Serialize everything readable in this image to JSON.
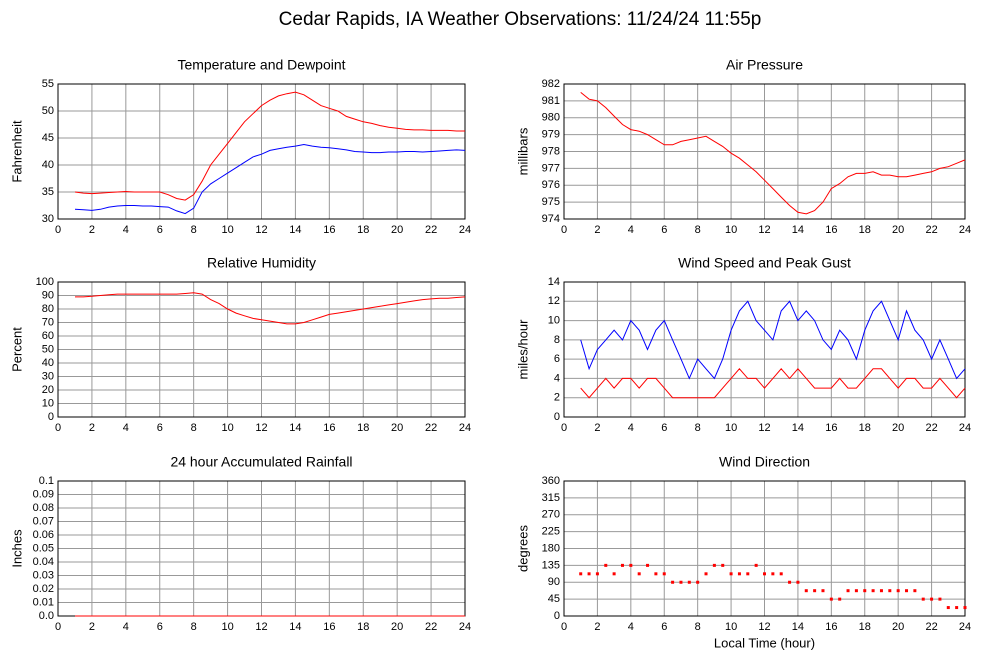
{
  "title": "Cedar Rapids, IA Weather Observations: 11/24/24 11:55p",
  "chart_data": [
    {
      "type": "line",
      "title": "Temperature and Dewpoint",
      "ylabel": "Fahrenheit",
      "x": [
        1,
        1.5,
        2,
        2.5,
        3,
        3.5,
        4,
        4.5,
        5,
        5.5,
        6,
        6.5,
        7,
        7.5,
        8,
        8.5,
        9,
        9.5,
        10,
        10.5,
        11,
        11.5,
        12,
        12.5,
        13,
        13.5,
        14,
        14.5,
        15,
        15.5,
        16,
        16.5,
        17,
        17.5,
        18,
        18.5,
        19,
        19.5,
        20,
        20.5,
        21,
        21.5,
        22,
        22.5,
        23,
        23.5,
        24
      ],
      "series": [
        {
          "color": "#ff0000",
          "values": [
            35,
            34.8,
            34.7,
            34.8,
            34.9,
            35,
            35.1,
            35,
            35,
            35,
            35,
            34.5,
            33.8,
            33.5,
            34.5,
            37,
            40,
            42,
            44,
            46,
            48,
            49.5,
            51,
            52,
            52.8,
            53.2,
            53.5,
            53,
            52,
            51,
            50.5,
            50,
            49,
            48.5,
            48,
            47.7,
            47.3,
            47,
            46.8,
            46.6,
            46.5,
            46.5,
            46.4,
            46.4,
            46.4,
            46.3,
            46.3
          ]
        },
        {
          "color": "#0000ff",
          "values": [
            31.8,
            31.7,
            31.6,
            31.8,
            32.2,
            32.4,
            32.5,
            32.5,
            32.4,
            32.4,
            32.3,
            32.2,
            31.5,
            31,
            32,
            35,
            36.5,
            37.5,
            38.5,
            39.5,
            40.5,
            41.5,
            42,
            42.7,
            43,
            43.3,
            43.5,
            43.8,
            43.5,
            43.3,
            43.2,
            43,
            42.8,
            42.5,
            42.4,
            42.3,
            42.3,
            42.4,
            42.4,
            42.5,
            42.5,
            42.4,
            42.5,
            42.6,
            42.7,
            42.8,
            42.7
          ]
        }
      ],
      "xlim": [
        0,
        24
      ],
      "xticks": [
        0,
        2,
        4,
        6,
        8,
        10,
        12,
        14,
        16,
        18,
        20,
        22,
        24
      ],
      "ylim": [
        30,
        55
      ],
      "yticks": [
        30,
        35,
        40,
        45,
        50,
        55
      ],
      "grid": true
    },
    {
      "type": "line",
      "title": "Air Pressure",
      "ylabel": "millibars",
      "x": [
        1,
        1.5,
        2,
        2.5,
        3,
        3.5,
        4,
        4.5,
        5,
        5.5,
        6,
        6.5,
        7,
        7.5,
        8,
        8.5,
        9,
        9.5,
        10,
        10.5,
        11,
        11.5,
        12,
        12.5,
        13,
        13.5,
        14,
        14.5,
        15,
        15.5,
        16,
        16.5,
        17,
        17.5,
        18,
        18.5,
        19,
        19.5,
        20,
        20.5,
        21,
        21.5,
        22,
        22.5,
        23,
        23.5,
        24
      ],
      "series": [
        {
          "color": "#ff0000",
          "values": [
            981.5,
            981.1,
            981,
            980.6,
            980.1,
            979.6,
            979.3,
            979.2,
            979,
            978.7,
            978.4,
            978.4,
            978.6,
            978.7,
            978.8,
            978.9,
            978.6,
            978.3,
            977.9,
            977.6,
            977.2,
            976.8,
            976.3,
            975.8,
            975.3,
            974.8,
            974.4,
            974.3,
            974.5,
            975,
            975.8,
            976.1,
            976.5,
            976.7,
            976.7,
            976.8,
            976.6,
            976.6,
            976.5,
            976.5,
            976.6,
            976.7,
            976.8,
            977,
            977.1,
            977.3,
            977.5
          ]
        }
      ],
      "xlim": [
        0,
        24
      ],
      "xticks": [
        0,
        2,
        4,
        6,
        8,
        10,
        12,
        14,
        16,
        18,
        20,
        22,
        24
      ],
      "ylim": [
        974,
        982
      ],
      "yticks": [
        974,
        975,
        976,
        977,
        978,
        979,
        980,
        981,
        982
      ],
      "grid": true
    },
    {
      "type": "line",
      "title": "Relative Humidity",
      "ylabel": "Percent",
      "x": [
        1,
        1.5,
        2,
        2.5,
        3,
        3.5,
        4,
        4.5,
        5,
        5.5,
        6,
        6.5,
        7,
        7.5,
        8,
        8.5,
        9,
        9.5,
        10,
        10.5,
        11,
        11.5,
        12,
        12.5,
        13,
        13.5,
        14,
        14.5,
        15,
        15.5,
        16,
        16.5,
        17,
        17.5,
        18,
        18.5,
        19,
        19.5,
        20,
        20.5,
        21,
        21.5,
        22,
        22.5,
        23,
        23.5,
        24
      ],
      "series": [
        {
          "color": "#ff0000",
          "values": [
            89,
            89,
            89.5,
            90,
            90.5,
            91,
            91,
            91,
            91,
            91,
            91,
            91,
            91,
            91.5,
            92,
            91,
            87,
            84,
            80,
            77,
            75,
            73,
            72,
            71,
            70,
            69,
            69,
            70,
            72,
            74,
            76,
            77,
            78,
            79,
            80,
            81,
            82,
            83,
            84,
            85,
            86,
            87,
            87.5,
            88,
            88,
            88.5,
            89
          ]
        }
      ],
      "xlim": [
        0,
        24
      ],
      "xticks": [
        0,
        2,
        4,
        6,
        8,
        10,
        12,
        14,
        16,
        18,
        20,
        22,
        24
      ],
      "ylim": [
        0,
        100
      ],
      "yticks": [
        0,
        10,
        20,
        30,
        40,
        50,
        60,
        70,
        80,
        90,
        100
      ],
      "grid": true
    },
    {
      "type": "line",
      "title": "Wind Speed and Peak Gust",
      "ylabel": "miles/hour",
      "x": [
        1,
        1.5,
        2,
        2.5,
        3,
        3.5,
        4,
        4.5,
        5,
        5.5,
        6,
        6.5,
        7,
        7.5,
        8,
        8.5,
        9,
        9.5,
        10,
        10.5,
        11,
        11.5,
        12,
        12.5,
        13,
        13.5,
        14,
        14.5,
        15,
        15.5,
        16,
        16.5,
        17,
        17.5,
        18,
        18.5,
        19,
        19.5,
        20,
        20.5,
        21,
        21.5,
        22,
        22.5,
        23,
        23.5,
        24
      ],
      "series": [
        {
          "color": "#0000ff",
          "values": [
            8,
            5,
            7,
            8,
            9,
            8,
            10,
            9,
            7,
            9,
            10,
            8,
            6,
            4,
            6,
            5,
            4,
            6,
            9,
            11,
            12,
            10,
            9,
            8,
            11,
            12,
            10,
            11,
            10,
            8,
            7,
            9,
            8,
            6,
            9,
            11,
            12,
            10,
            8,
            11,
            9,
            8,
            6,
            8,
            6,
            4,
            5
          ]
        },
        {
          "color": "#ff0000",
          "values": [
            3,
            2,
            3,
            4,
            3,
            4,
            4,
            3,
            4,
            4,
            3,
            2,
            2,
            2,
            2,
            2,
            2,
            3,
            4,
            5,
            4,
            4,
            3,
            4,
            5,
            4,
            5,
            4,
            3,
            3,
            3,
            4,
            3,
            3,
            4,
            5,
            5,
            4,
            3,
            4,
            4,
            3,
            3,
            4,
            3,
            2,
            3
          ]
        }
      ],
      "xlim": [
        0,
        24
      ],
      "xticks": [
        0,
        2,
        4,
        6,
        8,
        10,
        12,
        14,
        16,
        18,
        20,
        22,
        24
      ],
      "ylim": [
        0,
        14
      ],
      "yticks": [
        0,
        2,
        4,
        6,
        8,
        10,
        12,
        14
      ],
      "grid": true
    },
    {
      "type": "line",
      "title": "24 hour Accumulated Rainfall",
      "ylabel": "Inches",
      "x": [
        1,
        24
      ],
      "series": [
        {
          "color": "#ff0000",
          "values": [
            0,
            0
          ]
        }
      ],
      "xlim": [
        0,
        24
      ],
      "xticks": [
        0,
        2,
        4,
        6,
        8,
        10,
        12,
        14,
        16,
        18,
        20,
        22,
        24
      ],
      "ylim": [
        0,
        0.1
      ],
      "yticks": [
        {
          "value": 0,
          "label": "0.0"
        },
        0.01,
        0.02,
        0.03,
        0.04,
        0.05,
        0.06,
        0.07,
        0.08,
        0.09,
        0.1
      ],
      "grid": true
    },
    {
      "type": "scatter",
      "title": "Wind Direction",
      "ylabel": "degrees",
      "xlabel": "Local Time (hour)",
      "x": [
        1,
        1.5,
        2,
        2.5,
        3,
        3.5,
        4,
        4.5,
        5,
        5.5,
        6,
        6.5,
        7,
        7.5,
        8,
        8.5,
        9,
        9.5,
        10,
        10.5,
        11,
        11.5,
        12,
        12.5,
        13,
        13.5,
        14,
        14.5,
        15,
        15.5,
        16,
        16.5,
        17,
        17.5,
        18,
        18.5,
        19,
        19.5,
        20,
        20.5,
        21,
        21.5,
        22,
        22.5,
        23,
        23.5,
        24
      ],
      "series": [
        {
          "color": "#ff0000",
          "values": [
            112.5,
            112.5,
            112.5,
            135,
            112.5,
            135,
            135,
            112.5,
            135,
            112.5,
            112.5,
            90,
            90,
            90,
            90,
            112.5,
            135,
            135,
            112.5,
            112.5,
            112.5,
            135,
            112.5,
            112.5,
            112.5,
            90,
            90,
            67.5,
            67.5,
            67.5,
            45,
            45,
            67.5,
            67.5,
            67.5,
            67.5,
            67.5,
            67.5,
            67.5,
            67.5,
            67.5,
            45,
            45,
            45,
            22.5,
            22.5,
            22.5
          ]
        }
      ],
      "xlim": [
        0,
        24
      ],
      "xticks": [
        0,
        2,
        4,
        6,
        8,
        10,
        12,
        14,
        16,
        18,
        20,
        22,
        24
      ],
      "ylim": [
        0,
        360
      ],
      "yticks": [
        0,
        45,
        90,
        135,
        180,
        225,
        270,
        315,
        360
      ],
      "grid": true
    }
  ]
}
